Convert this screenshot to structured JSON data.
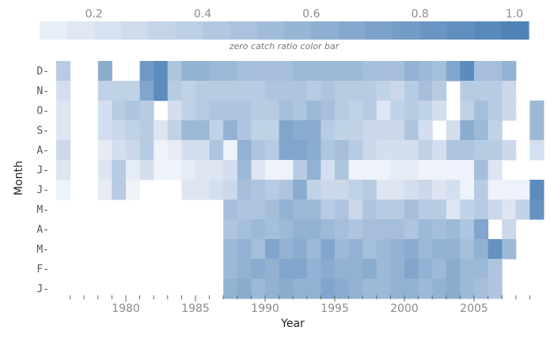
{
  "chart_data": {
    "type": "heatmap",
    "title": "",
    "xlabel": "Year",
    "ylabel": "Month",
    "colorbar_title": "zero catch ratio color bar",
    "colorbar_ticks": [
      "0.2",
      "0.4",
      "0.6",
      "0.8",
      "1.0"
    ],
    "colorbar_tick_values": [
      0.2,
      0.4,
      0.6,
      0.8,
      1.0
    ],
    "colorbar_range": [
      0.1,
      1.0
    ],
    "color_low": "#eef2f9",
    "color_high": "#4a7fb5",
    "x_tick_labels": [
      "1980",
      "1985",
      "1990",
      "1995",
      "2000",
      "2005"
    ],
    "x_tick_values": [
      1980,
      1985,
      1990,
      1995,
      2000,
      2005
    ],
    "years": [
      1975,
      2009
    ],
    "months": [
      "D-",
      "N-",
      "O-",
      "S-",
      "A-",
      "J-",
      "J-",
      "M-",
      "A-",
      "M-",
      "F-",
      "J-"
    ],
    "rows": [
      [
        0.4,
        null,
        null,
        0.65,
        null,
        null,
        0.8,
        0.9,
        0.45,
        0.6,
        0.6,
        0.55,
        0.55,
        0.5,
        0.5,
        0.5,
        0.5,
        0.55,
        0.55,
        0.55,
        0.55,
        0.55,
        0.5,
        0.5,
        0.5,
        0.6,
        0.55,
        0.5,
        0.7,
        0.9,
        0.5,
        0.5,
        0.6,
        null,
        null
      ],
      [
        0.25,
        null,
        null,
        0.35,
        0.35,
        0.35,
        0.7,
        0.9,
        0.4,
        0.35,
        0.4,
        0.4,
        0.4,
        0.4,
        0.4,
        0.45,
        0.45,
        0.45,
        0.4,
        0.45,
        0.4,
        0.4,
        0.4,
        0.35,
        0.3,
        0.4,
        0.5,
        0.4,
        null,
        0.4,
        0.4,
        0.4,
        0.3,
        null,
        null
      ],
      [
        0.2,
        null,
        null,
        0.25,
        0.4,
        0.45,
        0.4,
        null,
        0.25,
        0.35,
        0.4,
        0.45,
        0.45,
        0.45,
        0.4,
        0.4,
        0.5,
        0.45,
        0.55,
        0.5,
        0.4,
        0.35,
        0.4,
        0.2,
        0.35,
        0.4,
        0.35,
        0.25,
        null,
        0.35,
        0.5,
        0.4,
        0.3,
        null,
        0.55
      ],
      [
        0.2,
        null,
        null,
        0.25,
        0.3,
        0.35,
        0.4,
        0.2,
        0.35,
        0.55,
        0.55,
        0.35,
        0.6,
        0.45,
        0.35,
        0.35,
        0.7,
        0.65,
        0.65,
        0.4,
        0.35,
        0.35,
        0.3,
        0.3,
        0.3,
        0.45,
        0.25,
        null,
        0.25,
        0.65,
        0.55,
        0.35,
        null,
        null,
        0.55
      ],
      [
        0.3,
        null,
        null,
        0.15,
        0.25,
        0.3,
        0.4,
        0.1,
        0.15,
        0.25,
        0.25,
        0.45,
        0.1,
        0.6,
        0.45,
        0.4,
        0.7,
        0.7,
        0.65,
        0.45,
        0.5,
        0.4,
        0.3,
        0.25,
        0.25,
        0.25,
        0.35,
        0.25,
        0.45,
        0.45,
        0.4,
        0.4,
        0.3,
        null,
        0.25
      ],
      [
        0.2,
        null,
        null,
        0.2,
        0.4,
        0.15,
        0.25,
        0.1,
        0.1,
        0.15,
        0.2,
        0.2,
        0.25,
        0.55,
        0.2,
        0.05,
        0.05,
        0.4,
        0.6,
        0.25,
        0.45,
        0.1,
        0.1,
        0.1,
        0.15,
        0.15,
        0.1,
        0.1,
        0.1,
        0.05,
        0.5,
        0.2,
        null,
        null,
        null
      ],
      [
        0.1,
        null,
        null,
        0.15,
        0.4,
        0.1,
        null,
        null,
        null,
        0.2,
        0.2,
        0.25,
        0.3,
        0.5,
        0.45,
        0.4,
        0.45,
        0.65,
        0.35,
        0.3,
        0.3,
        0.35,
        0.4,
        0.2,
        0.2,
        0.25,
        0.3,
        0.2,
        0.25,
        0.1,
        0.4,
        0.1,
        0.1,
        0.1,
        0.9
      ],
      [
        null,
        null,
        null,
        null,
        null,
        null,
        null,
        null,
        null,
        null,
        null,
        null,
        0.5,
        0.45,
        0.45,
        0.5,
        0.6,
        0.55,
        0.55,
        0.4,
        0.45,
        0.3,
        0.45,
        0.4,
        0.4,
        0.5,
        0.4,
        0.4,
        0.2,
        0.35,
        0.4,
        0.3,
        0.2,
        0.35,
        0.85
      ],
      [
        null,
        null,
        null,
        null,
        null,
        null,
        null,
        null,
        null,
        null,
        null,
        null,
        0.45,
        0.5,
        0.55,
        0.5,
        0.55,
        0.6,
        0.6,
        0.55,
        0.5,
        0.45,
        0.5,
        0.5,
        0.5,
        0.45,
        0.55,
        0.5,
        0.55,
        0.45,
        0.7,
        null,
        0.3,
        null,
        null
      ],
      [
        null,
        null,
        null,
        null,
        null,
        null,
        null,
        null,
        null,
        null,
        null,
        null,
        0.55,
        0.6,
        0.5,
        0.7,
        0.6,
        0.65,
        0.55,
        0.7,
        0.55,
        0.6,
        0.5,
        0.55,
        0.6,
        0.65,
        0.55,
        0.6,
        0.6,
        0.5,
        0.6,
        0.85,
        0.55,
        null,
        null
      ],
      [
        null,
        null,
        null,
        null,
        null,
        null,
        null,
        null,
        null,
        null,
        null,
        null,
        0.55,
        0.6,
        0.65,
        0.6,
        0.7,
        0.7,
        0.6,
        0.65,
        0.6,
        0.6,
        0.65,
        0.55,
        0.6,
        0.7,
        0.6,
        0.55,
        0.65,
        0.55,
        0.55,
        0.45,
        null,
        null,
        null
      ],
      [
        null,
        null,
        null,
        null,
        null,
        null,
        null,
        null,
        null,
        null,
        null,
        null,
        0.6,
        0.65,
        0.55,
        0.6,
        0.65,
        0.6,
        0.6,
        0.7,
        0.65,
        0.6,
        0.55,
        0.55,
        0.6,
        0.6,
        0.55,
        0.6,
        0.65,
        0.55,
        0.5,
        0.45,
        null,
        null,
        null
      ]
    ]
  }
}
